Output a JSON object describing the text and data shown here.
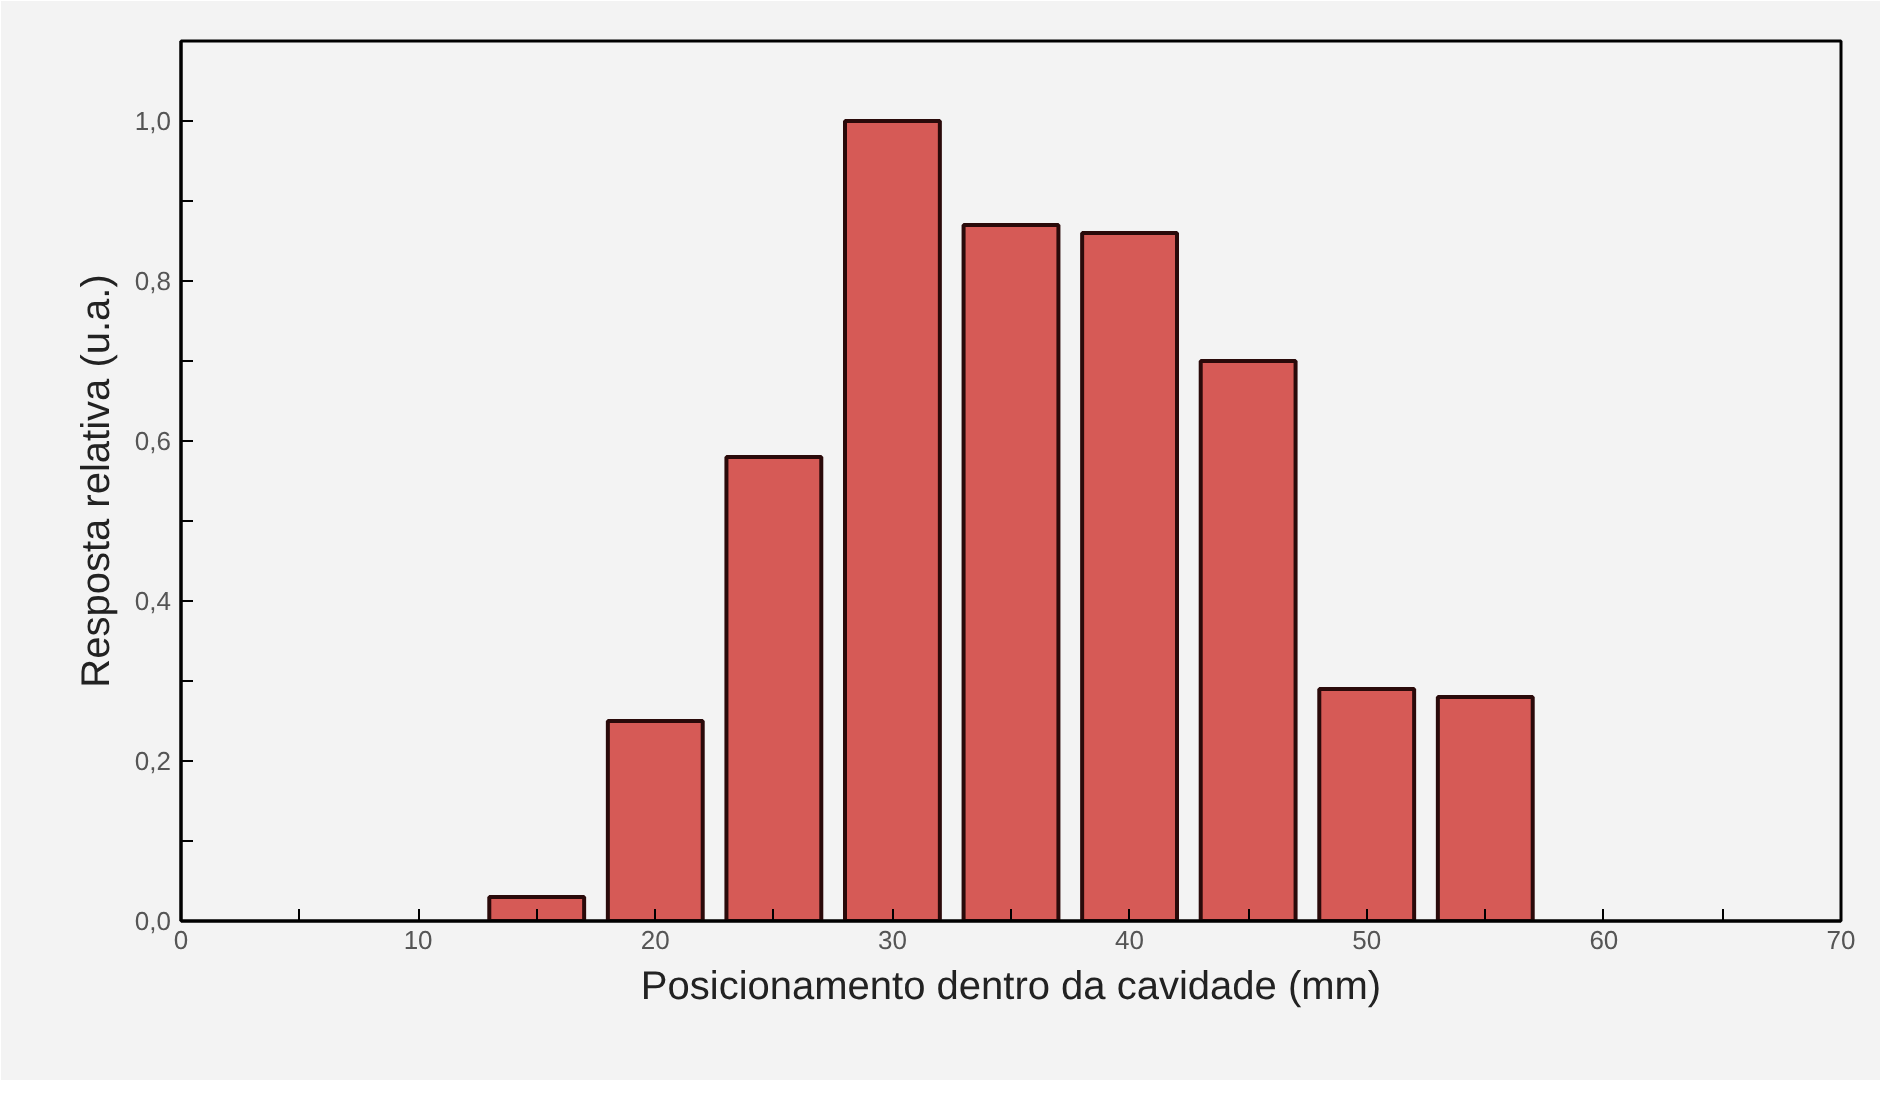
{
  "chart_data": {
    "type": "bar",
    "xlabel": "Posicionamento dentro da cavidade (mm)",
    "ylabel": "Resposta relativa (u.a.)",
    "x": [
      15,
      20,
      25,
      30,
      35,
      40,
      45,
      50,
      55
    ],
    "values": [
      0.03,
      0.25,
      0.58,
      1.0,
      0.87,
      0.86,
      0.7,
      0.29,
      0.28
    ],
    "color": "#d65a56",
    "xlim": [
      0,
      70
    ],
    "ylim": [
      0,
      1.1
    ],
    "xticks": [
      {
        "value": 0,
        "label": "0"
      },
      {
        "value": 5,
        "label": null
      },
      {
        "value": 10,
        "label": "10"
      },
      {
        "value": 15,
        "label": null
      },
      {
        "value": 20,
        "label": "20"
      },
      {
        "value": 25,
        "label": null
      },
      {
        "value": 30,
        "label": "30"
      },
      {
        "value": 35,
        "label": null
      },
      {
        "value": 40,
        "label": "40"
      },
      {
        "value": 45,
        "label": null
      },
      {
        "value": 50,
        "label": "50"
      },
      {
        "value": 55,
        "label": null
      },
      {
        "value": 60,
        "label": "60"
      },
      {
        "value": 65,
        "label": null
      },
      {
        "value": 70,
        "label": "70"
      }
    ],
    "yticks": [
      {
        "value": 0,
        "label": "0,0"
      },
      {
        "value": 0.1,
        "label": null
      },
      {
        "value": 0.2,
        "label": "0,2"
      },
      {
        "value": 0.3,
        "label": null
      },
      {
        "value": 0.4,
        "label": "0,4"
      },
      {
        "value": 0.5,
        "label": null
      },
      {
        "value": 0.6,
        "label": "0,6"
      },
      {
        "value": 0.7,
        "label": null
      },
      {
        "value": 0.8,
        "label": "0,8"
      },
      {
        "value": 0.9,
        "label": null
      },
      {
        "value": 1.0,
        "label": "1,0"
      }
    ],
    "grid": false
  }
}
